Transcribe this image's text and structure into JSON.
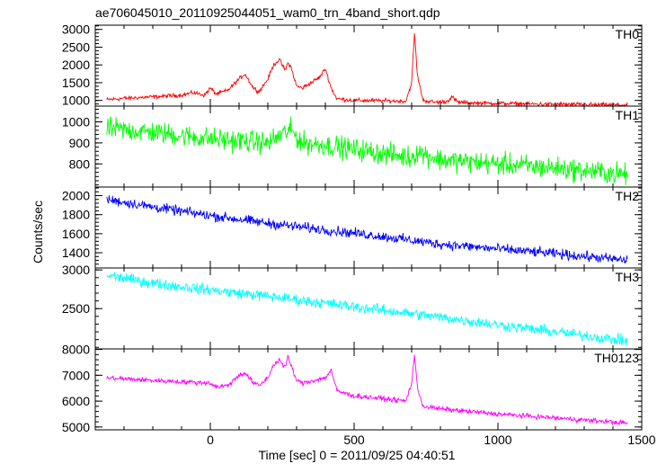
{
  "chart_data": {
    "type": "line",
    "title": "ae706045010_20110925044051_wam0_trn_4band_short.qdp",
    "xlabel": "Time [sec] 0 = 2011/09/25 04:40:51",
    "ylabel": "Counts/sec",
    "xlim": [
      -400,
      1500
    ],
    "xticks": [
      0,
      500,
      1000,
      1500
    ],
    "xticklabels": [
      "0",
      "500",
      "1000",
      "1500"
    ],
    "panels": [
      {
        "name": "TH0",
        "color": "#ff0000",
        "ylim": [
          840,
          3120
        ],
        "yticks": [
          1000,
          1500,
          2000,
          2500,
          3000
        ],
        "yticklabels": [
          "1000",
          "1500",
          "2000",
          "2500",
          "3000"
        ],
        "noise": 50,
        "x": [
          -360,
          -300,
          -200,
          -100,
          -60,
          -20,
          0,
          20,
          60,
          100,
          120,
          150,
          170,
          200,
          220,
          240,
          260,
          270,
          280,
          300,
          320,
          340,
          380,
          400,
          420,
          440,
          500,
          600,
          680,
          700,
          710,
          720,
          740,
          780,
          820,
          840,
          860,
          900,
          1000,
          1100,
          1200,
          1300,
          1450
        ],
        "y": [
          1020,
          1060,
          1100,
          1150,
          1220,
          1150,
          1350,
          1180,
          1280,
          1600,
          1750,
          1350,
          1250,
          1600,
          2000,
          2150,
          1850,
          2050,
          1950,
          1400,
          1350,
          1450,
          1650,
          1900,
          1350,
          1050,
          1000,
          990,
          980,
          1500,
          2900,
          1700,
          1000,
          950,
          960,
          1100,
          950,
          930,
          920,
          900,
          890,
          880,
          870
        ]
      },
      {
        "name": "TH1",
        "color": "#00ff00",
        "ylim": [
          690,
          1075
        ],
        "yticks": [
          800,
          900,
          1000
        ],
        "yticklabels": [
          "800",
          "900",
          "1000"
        ],
        "noise": 45,
        "x": [
          -360,
          -200,
          0,
          200,
          260,
          280,
          320,
          400,
          600,
          700,
          720,
          800,
          1000,
          1200,
          1450
        ],
        "y": [
          970,
          950,
          920,
          900,
          950,
          960,
          900,
          890,
          850,
          830,
          860,
          820,
          800,
          780,
          750
        ]
      },
      {
        "name": "TH2",
        "color": "#0000ff",
        "ylim": [
          1240,
          2090
        ],
        "yticks": [
          1400,
          1600,
          1800,
          2000
        ],
        "yticklabels": [
          "1400",
          "1600",
          "1800",
          "2000"
        ],
        "noise": 45,
        "x": [
          -360,
          -200,
          0,
          200,
          400,
          600,
          800,
          1000,
          1200,
          1450
        ],
        "y": [
          1960,
          1880,
          1790,
          1710,
          1640,
          1570,
          1490,
          1440,
          1390,
          1320
        ]
      },
      {
        "name": "TH3",
        "color": "#00ffff",
        "ylim": [
          1980,
          3025
        ],
        "yticks": [
          2500,
          3000
        ],
        "yticklabels": [
          "2500",
          "3000"
        ],
        "noise": 60,
        "x": [
          -360,
          -200,
          0,
          200,
          400,
          600,
          800,
          1000,
          1200,
          1450
        ],
        "y": [
          2930,
          2830,
          2740,
          2660,
          2570,
          2480,
          2390,
          2290,
          2200,
          2080
        ]
      },
      {
        "name": "TH0123",
        "color": "#ff00ff",
        "ylim": [
          4890,
          8020
        ],
        "yticks": [
          5000,
          6000,
          7000,
          8000
        ],
        "yticklabels": [
          "5000",
          "6000",
          "7000",
          "8000"
        ],
        "noise": 80,
        "x": [
          -360,
          -200,
          0,
          20,
          60,
          100,
          120,
          150,
          170,
          200,
          220,
          240,
          260,
          270,
          280,
          300,
          320,
          400,
          420,
          440,
          500,
          600,
          680,
          700,
          710,
          720,
          740,
          800,
          1000,
          1200,
          1450
        ],
        "y": [
          6900,
          6800,
          6700,
          6550,
          6600,
          7000,
          7100,
          6700,
          6600,
          6900,
          7400,
          7600,
          7300,
          7700,
          7400,
          6800,
          6700,
          6900,
          7200,
          6400,
          6200,
          6100,
          6000,
          6700,
          7800,
          6500,
          5800,
          5700,
          5500,
          5350,
          5150
        ]
      }
    ]
  }
}
